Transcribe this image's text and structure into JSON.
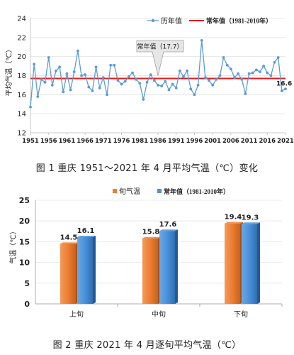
{
  "chart_data": [
    {
      "type": "line",
      "ylabel": "平均气温（℃）",
      "ylim": [
        12,
        24
      ],
      "yticks": [
        12,
        14,
        16,
        18,
        20,
        22,
        24
      ],
      "xticks": [
        "1951",
        "1956",
        "1961",
        "1966",
        "1971",
        "1976",
        "1981",
        "1986",
        "1991",
        "1996",
        "2001",
        "2006",
        "2011",
        "2016",
        "2021"
      ],
      "xlim": [
        1951,
        2021
      ],
      "legend_position": "top-right",
      "x": [
        1951,
        1952,
        1953,
        1954,
        1955,
        1956,
        1957,
        1958,
        1959,
        1960,
        1961,
        1962,
        1963,
        1964,
        1965,
        1966,
        1967,
        1968,
        1969,
        1970,
        1971,
        1972,
        1973,
        1974,
        1975,
        1976,
        1977,
        1978,
        1979,
        1980,
        1981,
        1982,
        1983,
        1984,
        1985,
        1986,
        1987,
        1988,
        1989,
        1990,
        1991,
        1992,
        1993,
        1994,
        1995,
        1996,
        1997,
        1998,
        1999,
        2000,
        2001,
        2002,
        2003,
        2004,
        2005,
        2006,
        2007,
        2008,
        2009,
        2010,
        2011,
        2012,
        2013,
        2014,
        2015,
        2016,
        2017,
        2018,
        2019,
        2020,
        2021
      ],
      "series": [
        {
          "name": "历年值",
          "color": "#5b9bd5",
          "values": [
            14.7,
            19.2,
            15.8,
            17.6,
            17.3,
            19.9,
            17.0,
            18.5,
            18.9,
            16.3,
            18.2,
            16.5,
            18.4,
            20.6,
            18.0,
            18.1,
            16.8,
            16.4,
            18.9,
            16.7,
            17.8,
            16.0,
            19.1,
            19.1,
            17.5,
            17.1,
            17.4,
            17.9,
            18.3,
            17.6,
            17.2,
            15.5,
            17.3,
            18.1,
            17.5,
            17.0,
            16.9,
            17.4,
            16.5,
            17.1,
            16.7,
            18.5,
            17.9,
            18.5,
            16.6,
            16.0,
            17.0,
            21.7,
            17.8,
            17.5,
            17.0,
            17.6,
            18.0,
            19.9,
            19.1,
            18.7,
            17.8,
            18.2,
            17.6,
            16.1,
            18.2,
            18.3,
            18.6,
            18.4,
            19.0,
            18.3,
            18.0,
            19.4,
            19.9,
            16.4,
            16.6
          ]
        },
        {
          "name": "常年值（1981-2010年）",
          "color": "#e31a1c",
          "constant": 17.7
        }
      ],
      "annotations": [
        {
          "text": "常年值（17.7）",
          "x": 1986
        },
        {
          "text": "16.6",
          "x": 2021
        }
      ]
    },
    {
      "type": "bar",
      "ylabel": "气温（℃）",
      "ylim": [
        0,
        25
      ],
      "yticks": [
        0,
        5,
        10,
        15,
        20,
        25
      ],
      "categories": [
        "上旬",
        "中旬",
        "下旬"
      ],
      "legend_position": "top",
      "series": [
        {
          "name": "旬气温",
          "color": "#ed7d31",
          "values": [
            14.5,
            15.8,
            19.4
          ]
        },
        {
          "name": "常年值（1981-2010年）",
          "color": "#4a90d9",
          "values": [
            16.1,
            17.6,
            19.3
          ]
        }
      ]
    }
  ],
  "captions": {
    "figure1": "图 1   重庆 1951～2021 年 4 月平均气温（℃）变化",
    "figure2": "图 2   重庆 2021 年 4 月逐旬平均气温（℃）"
  }
}
